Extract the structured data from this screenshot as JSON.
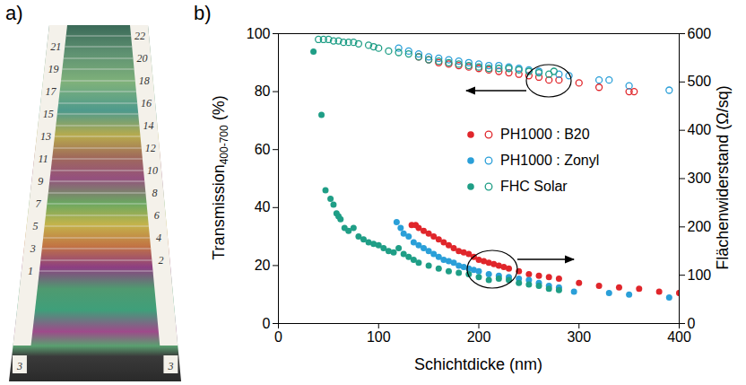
{
  "photo": {
    "label": "a)",
    "left_marks": [
      "21",
      "19",
      "17",
      "15",
      "13",
      "11",
      "9",
      "7",
      "5",
      "3",
      "1"
    ],
    "right_marks": [
      "22",
      "20",
      "18",
      "16",
      "14",
      "12",
      "10",
      "8",
      "6",
      "4",
      "2"
    ],
    "bottom_marks": [
      "3",
      "3"
    ]
  },
  "chart_data": {
    "type": "scatter",
    "label": "b)",
    "xlabel": "Schichtdicke (nm)",
    "ylabel": {
      "text": "Transmission",
      "subscript": "400-700",
      "unit": "(%)"
    },
    "y2label": "Flächenwiderstand (Ω/sq)",
    "xlim": [
      0,
      400
    ],
    "xticks": [
      0,
      100,
      200,
      300,
      400
    ],
    "ylim": [
      0,
      100
    ],
    "yticks": [
      0,
      20,
      40,
      60,
      80,
      100
    ],
    "y2lim": [
      0,
      600
    ],
    "y2ticks": [
      0,
      100,
      200,
      300,
      400,
      500,
      600
    ],
    "legend": "right",
    "series": [
      {
        "name": "PH1000 : B20",
        "color": "#e0262b",
        "marker": "circle_open",
        "x": [
          140,
          150,
          160,
          170,
          180,
          190,
          200,
          210,
          220,
          230,
          240,
          250,
          260,
          270,
          280,
          300,
          320,
          350,
          355
        ],
        "values": [
          92,
          91,
          90,
          89.5,
          89,
          88.5,
          88,
          87.5,
          87,
          86.5,
          86,
          85.5,
          85,
          84,
          84,
          83,
          81.5,
          80,
          80
        ]
      },
      {
        "name": "PH1000 : Zonyl",
        "color": "#2a9fd8",
        "marker": "circle_open",
        "x": [
          120,
          130,
          140,
          150,
          160,
          170,
          180,
          190,
          200,
          210,
          220,
          230,
          240,
          250,
          260,
          280,
          290,
          320,
          330,
          350,
          390
        ],
        "values": [
          95,
          94,
          93,
          92,
          91.5,
          91,
          90.5,
          90,
          89.5,
          89,
          89,
          88.5,
          88,
          87.5,
          87,
          86,
          85.5,
          84,
          84,
          82,
          80.5
        ]
      },
      {
        "name": "FHC Solar",
        "color": "#1f9e86",
        "marker": "circle_open",
        "x": [
          40,
          45,
          50,
          55,
          60,
          65,
          70,
          75,
          80,
          90,
          95,
          100,
          110,
          120,
          130,
          140,
          150,
          160,
          170,
          180,
          190,
          200,
          210,
          220,
          230,
          240,
          250,
          260,
          270,
          275
        ],
        "values": [
          98,
          98,
          98,
          97.5,
          97.5,
          97,
          97,
          97,
          96.5,
          96,
          95.5,
          95,
          94,
          93.5,
          93,
          92,
          91,
          90.5,
          90,
          89.5,
          89,
          88.5,
          88,
          88,
          88,
          87.5,
          87,
          86.5,
          86,
          87
        ]
      },
      {
        "name": "PH1000 : B20",
        "color": "#e0262b",
        "marker": "circle",
        "axis": "y2",
        "x": [
          133,
          137,
          140,
          145,
          150,
          155,
          160,
          165,
          170,
          175,
          180,
          185,
          190,
          195,
          200,
          205,
          210,
          215,
          220,
          225,
          230,
          240,
          250,
          260,
          270,
          280,
          300,
          320,
          340,
          360,
          380,
          400
        ],
        "values": [
          204,
          204,
          198,
          192,
          186,
          180,
          174,
          168,
          162,
          156,
          150,
          147,
          144,
          138,
          132,
          129,
          126,
          123,
          120,
          117,
          114,
          108,
          102,
          99,
          96,
          93,
          84,
          78,
          75,
          72,
          66,
          63
        ]
      },
      {
        "name": "PH1000 : Zonyl",
        "color": "#2a9fd8",
        "marker": "circle",
        "axis": "y2",
        "x": [
          118,
          122,
          125,
          130,
          135,
          140,
          145,
          150,
          155,
          160,
          165,
          170,
          175,
          180,
          185,
          190,
          195,
          200,
          210,
          220,
          230,
          240,
          250,
          260,
          270,
          280,
          295,
          330,
          350,
          390
        ],
        "values": [
          210,
          198,
          186,
          180,
          168,
          162,
          156,
          150,
          144,
          138,
          132,
          129,
          126,
          120,
          117,
          114,
          111,
          108,
          102,
          99,
          96,
          93,
          90,
          84,
          78,
          75,
          66,
          63,
          60,
          54
        ]
      },
      {
        "name": "FHC Solar",
        "color": "#1f9e86",
        "marker": "circle",
        "axis": "y2",
        "x": [
          35,
          43,
          47,
          52,
          55,
          58,
          60,
          62,
          66,
          70,
          75,
          80,
          85,
          90,
          95,
          100,
          105,
          110,
          115,
          120,
          125,
          130,
          135,
          140,
          150,
          160,
          170,
          180,
          190,
          200,
          210,
          220,
          230,
          240,
          250,
          260,
          270,
          280
        ],
        "values": [
          563,
          432,
          276,
          258,
          246,
          228,
          222,
          216,
          198,
          192,
          198,
          180,
          174,
          168,
          165,
          162,
          156,
          150,
          147,
          156,
          144,
          138,
          132,
          126,
          120,
          114,
          108,
          105,
          102,
          96,
          90,
          93,
          90,
          84,
          81,
          78,
          72,
          69
        ]
      }
    ]
  }
}
